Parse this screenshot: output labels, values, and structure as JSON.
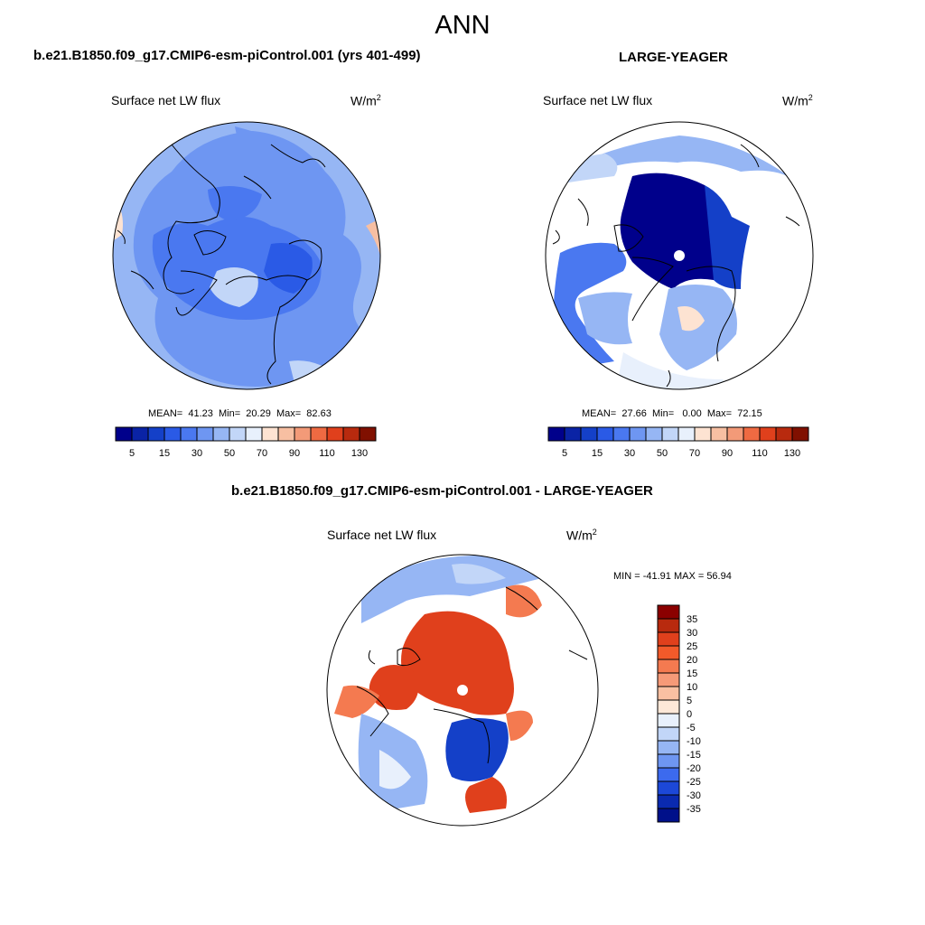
{
  "figure": {
    "season": "ANN"
  },
  "chart_data": [
    {
      "type": "heatmap",
      "title": "b.e21.B1850.f09_g17.CMIP6-esm-piControl.001 (yrs 401-499)",
      "variable": "Surface net LW flux",
      "units_base": "W/m",
      "units_exp": "2",
      "stats": {
        "mean_label": "MEAN=",
        "mean": "41.23",
        "min_label": "Min=",
        "min": "20.29",
        "max_label": "Max=",
        "max": "82.63"
      },
      "colorbar": {
        "levels": [
          5,
          10,
          15,
          20,
          30,
          40,
          50,
          60,
          70,
          80,
          90,
          100,
          110,
          120,
          130
        ],
        "tick_labels": [
          "5",
          "15",
          "30",
          "50",
          "70",
          "90",
          "110",
          "130"
        ],
        "colors": [
          "#00008b",
          "#0a23a5",
          "#1440c8",
          "#2a5ae6",
          "#4a78f0",
          "#6e96f2",
          "#96b6f4",
          "#c2d6f8",
          "#e8f0fc",
          "#fde3d2",
          "#f7bfa2",
          "#f39a78",
          "#ef6a42",
          "#e0401c",
          "#b82a0e",
          "#801000"
        ]
      }
    },
    {
      "type": "heatmap",
      "title": "LARGE-YEAGER",
      "variable": "Surface net LW flux",
      "units_base": "W/m",
      "units_exp": "2",
      "stats": {
        "mean_label": "MEAN=",
        "mean": "27.66",
        "min_label": "Min=",
        "min": "0.00",
        "max_label": "Max=",
        "max": "72.15"
      },
      "colorbar": {
        "levels": [
          5,
          10,
          15,
          20,
          30,
          40,
          50,
          60,
          70,
          80,
          90,
          100,
          110,
          120,
          130
        ],
        "tick_labels": [
          "5",
          "15",
          "30",
          "50",
          "70",
          "90",
          "110",
          "130"
        ],
        "colors": [
          "#00008b",
          "#0a23a5",
          "#1440c8",
          "#2a5ae6",
          "#4a78f0",
          "#6e96f2",
          "#96b6f4",
          "#c2d6f8",
          "#e8f0fc",
          "#fde3d2",
          "#f7bfa2",
          "#f39a78",
          "#ef6a42",
          "#e0401c",
          "#b82a0e",
          "#801000"
        ]
      }
    },
    {
      "type": "heatmap",
      "title": "b.e21.B1850.f09_g17.CMIP6-esm-piControl.001 - LARGE-YEAGER",
      "variable": "Surface net LW flux",
      "units_base": "W/m",
      "units_exp": "2",
      "stats_text": "MIN = -41.91 MAX =  56.94",
      "colorbar": {
        "levels": [
          35,
          30,
          25,
          20,
          15,
          10,
          5,
          0,
          -5,
          -10,
          -15,
          -20,
          -25,
          -30,
          -35
        ],
        "tick_labels": [
          "35",
          "30",
          "25",
          "20",
          "15",
          "10",
          "5",
          "0",
          "-5",
          "-10",
          "-15",
          "-20",
          "-25",
          "-30",
          "-35"
        ],
        "colors": [
          "#8b0000",
          "#b82a0e",
          "#e0401c",
          "#f25a2a",
          "#f47a50",
          "#f69a78",
          "#f9c0a2",
          "#fde8d8",
          "#e8f0fc",
          "#c2d6f8",
          "#96b6f4",
          "#6e96f2",
          "#3c6aee",
          "#1c48d8",
          "#0a2ab0",
          "#00108a"
        ]
      }
    }
  ]
}
